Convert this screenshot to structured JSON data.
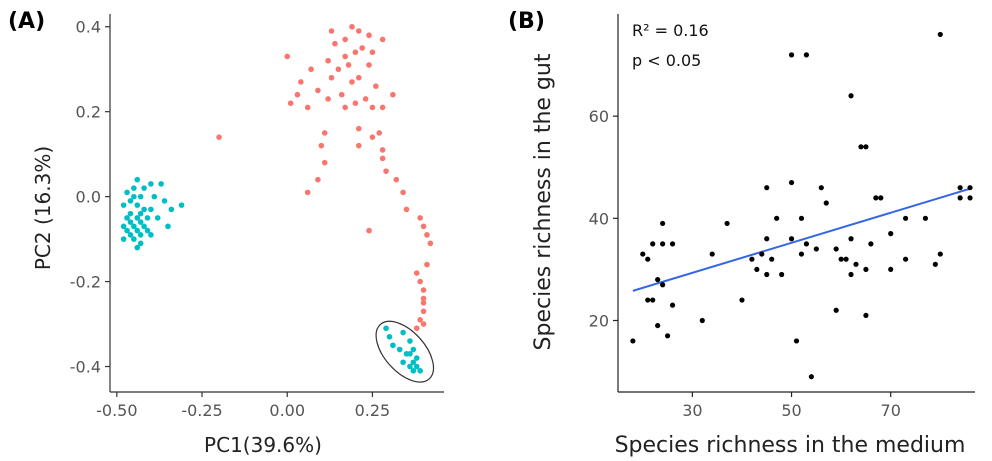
{
  "chart_data": [
    {
      "type": "scatter",
      "panel_label": "(A)",
      "xlabel": "PC1(39.6%)",
      "ylabel": "PC2 (16.3%)",
      "xlim": [
        -0.52,
        0.46
      ],
      "ylim": [
        -0.46,
        0.43
      ],
      "x_ticks": [
        -0.5,
        -0.25,
        0.0,
        0.25
      ],
      "x_tick_labels": [
        "-0.50",
        "-0.25",
        "0.00",
        "0.25"
      ],
      "y_ticks": [
        0.4,
        0.2,
        0.0,
        -0.2,
        -0.4
      ],
      "y_tick_labels": [
        "0.4",
        "0.2",
        "0.0",
        "-0.2",
        "-0.4"
      ],
      "grid": false,
      "ellipse": {
        "center": [
          0.345,
          -0.365
        ],
        "radius_x": 0.082,
        "radius_y": 0.082,
        "color": "#333333"
      },
      "series": [
        {
          "color": "#F8766D",
          "points": [
            [
              0.19,
              0.4
            ],
            [
              0.21,
              0.39
            ],
            [
              0.13,
              0.39
            ],
            [
              0.17,
              0.37
            ],
            [
              0.24,
              0.38
            ],
            [
              0.28,
              0.37
            ],
            [
              0.14,
              0.36
            ],
            [
              0.22,
              0.35
            ],
            [
              0.2,
              0.34
            ],
            [
              0.17,
              0.33
            ],
            [
              0.25,
              0.34
            ],
            [
              0.0,
              0.33
            ],
            [
              0.12,
              0.32
            ],
            [
              0.24,
              0.31
            ],
            [
              0.18,
              0.31
            ],
            [
              0.07,
              0.3
            ],
            [
              0.15,
              0.3
            ],
            [
              0.13,
              0.28
            ],
            [
              0.21,
              0.28
            ],
            [
              0.19,
              0.27
            ],
            [
              0.04,
              0.27
            ],
            [
              0.26,
              0.26
            ],
            [
              0.09,
              0.25
            ],
            [
              0.16,
              0.24
            ],
            [
              0.03,
              0.24
            ],
            [
              0.23,
              0.23
            ],
            [
              0.12,
              0.23
            ],
            [
              0.01,
              0.22
            ],
            [
              0.31,
              0.24
            ],
            [
              0.2,
              0.22
            ],
            [
              0.17,
              0.21
            ],
            [
              0.25,
              0.21
            ],
            [
              0.28,
              0.21
            ],
            [
              0.06,
              0.21
            ],
            [
              0.21,
              0.16
            ],
            [
              0.11,
              0.15
            ],
            [
              0.27,
              0.15
            ],
            [
              0.25,
              0.14
            ],
            [
              -0.2,
              0.14
            ],
            [
              0.21,
              0.12
            ],
            [
              0.1,
              0.12
            ],
            [
              0.28,
              0.11
            ],
            [
              0.28,
              0.09
            ],
            [
              0.11,
              0.08
            ],
            [
              0.29,
              0.06
            ],
            [
              0.09,
              0.04
            ],
            [
              0.06,
              0.01
            ],
            [
              0.32,
              0.04
            ],
            [
              0.34,
              0.01
            ],
            [
              0.35,
              -0.03
            ],
            [
              0.39,
              -0.05
            ],
            [
              0.4,
              -0.07
            ],
            [
              0.24,
              -0.08
            ],
            [
              0.41,
              -0.09
            ],
            [
              0.42,
              -0.11
            ],
            [
              0.41,
              -0.16
            ],
            [
              0.38,
              -0.18
            ],
            [
              0.39,
              -0.2
            ],
            [
              0.4,
              -0.22
            ],
            [
              0.4,
              -0.24
            ],
            [
              0.4,
              -0.25
            ],
            [
              0.4,
              -0.27
            ],
            [
              0.39,
              -0.29
            ],
            [
              0.4,
              -0.3
            ],
            [
              0.38,
              -0.31
            ]
          ]
        },
        {
          "color": "#00BFC4",
          "points": [
            [
              -0.44,
              0.04
            ],
            [
              -0.4,
              0.03
            ],
            [
              -0.45,
              0.02
            ],
            [
              -0.42,
              0.02
            ],
            [
              -0.37,
              0.03
            ],
            [
              -0.47,
              0.01
            ],
            [
              -0.45,
              0.0
            ],
            [
              -0.43,
              0.0
            ],
            [
              -0.39,
              0.0
            ],
            [
              -0.46,
              -0.01
            ],
            [
              -0.31,
              -0.02
            ],
            [
              -0.36,
              -0.01
            ],
            [
              -0.48,
              -0.02
            ],
            [
              -0.44,
              -0.02
            ],
            [
              -0.42,
              -0.03
            ],
            [
              -0.4,
              -0.03
            ],
            [
              -0.34,
              -0.03
            ],
            [
              -0.46,
              -0.04
            ],
            [
              -0.43,
              -0.04
            ],
            [
              -0.47,
              -0.05
            ],
            [
              -0.44,
              -0.05
            ],
            [
              -0.41,
              -0.05
            ],
            [
              -0.38,
              -0.05
            ],
            [
              -0.46,
              -0.06
            ],
            [
              -0.43,
              -0.06
            ],
            [
              -0.35,
              -0.07
            ],
            [
              -0.48,
              -0.07
            ],
            [
              -0.45,
              -0.07
            ],
            [
              -0.42,
              -0.07
            ],
            [
              -0.44,
              -0.08
            ],
            [
              -0.41,
              -0.08
            ],
            [
              -0.47,
              -0.08
            ],
            [
              -0.46,
              -0.09
            ],
            [
              -0.43,
              -0.09
            ],
            [
              -0.4,
              -0.09
            ],
            [
              -0.45,
              -0.1
            ],
            [
              -0.48,
              -0.1
            ],
            [
              -0.43,
              -0.11
            ],
            [
              -0.44,
              -0.12
            ],
            [
              0.29,
              -0.31
            ],
            [
              0.34,
              -0.32
            ],
            [
              0.3,
              -0.33
            ],
            [
              0.36,
              -0.34
            ],
            [
              0.31,
              -0.35
            ],
            [
              0.33,
              -0.36
            ],
            [
              0.37,
              -0.36
            ],
            [
              0.36,
              -0.37
            ],
            [
              0.35,
              -0.37
            ],
            [
              0.38,
              -0.38
            ],
            [
              0.34,
              -0.39
            ],
            [
              0.37,
              -0.39
            ],
            [
              0.36,
              -0.4
            ],
            [
              0.38,
              -0.4
            ],
            [
              0.39,
              -0.41
            ],
            [
              0.37,
              -0.41
            ]
          ]
        }
      ]
    },
    {
      "type": "scatter",
      "panel_label": "(B)",
      "xlabel": "Species richness in the medium",
      "ylabel": "Species richness in the gut",
      "annotations": [
        "R² = 0.16",
        "p < 0.05"
      ],
      "xlim": [
        15,
        87
      ],
      "ylim": [
        6,
        80
      ],
      "x_ticks": [
        30,
        50,
        70
      ],
      "y_ticks": [
        20,
        40,
        60
      ],
      "grid": false,
      "fit_line": {
        "color": "#3366E6",
        "x": [
          18,
          86
        ],
        "y": [
          25.8,
          45.8
        ]
      },
      "series": [
        {
          "color": "#000000",
          "points": [
            [
              80,
              76
            ],
            [
              50,
              72
            ],
            [
              53,
              72
            ],
            [
              62,
              64
            ],
            [
              64,
              54
            ],
            [
              65,
              54
            ],
            [
              84,
              46
            ],
            [
              50,
              47
            ],
            [
              45,
              46
            ],
            [
              56,
              46
            ],
            [
              86,
              46
            ],
            [
              84,
              44
            ],
            [
              68,
              44
            ],
            [
              86,
              44
            ],
            [
              67,
              44
            ],
            [
              57,
              43
            ],
            [
              24,
              39
            ],
            [
              37,
              39
            ],
            [
              52,
              40
            ],
            [
              47,
              40
            ],
            [
              73,
              40
            ],
            [
              70,
              37
            ],
            [
              77,
              40
            ],
            [
              45,
              36
            ],
            [
              50,
              36
            ],
            [
              62,
              36
            ],
            [
              22,
              35
            ],
            [
              24,
              35
            ],
            [
              26,
              35
            ],
            [
              53,
              35
            ],
            [
              66,
              35
            ],
            [
              20,
              33
            ],
            [
              80,
              33
            ],
            [
              44,
              33
            ],
            [
              52,
              33
            ],
            [
              55,
              34
            ],
            [
              59,
              34
            ],
            [
              34,
              33
            ],
            [
              21,
              32
            ],
            [
              42,
              32
            ],
            [
              73,
              32
            ],
            [
              46,
              32
            ],
            [
              60,
              32
            ],
            [
              61,
              32
            ],
            [
              63,
              31
            ],
            [
              43,
              30
            ],
            [
              65,
              30
            ],
            [
              70,
              30
            ],
            [
              79,
              31
            ],
            [
              62,
              29
            ],
            [
              45,
              29
            ],
            [
              48,
              29
            ],
            [
              23,
              28
            ],
            [
              24,
              27
            ],
            [
              21,
              24
            ],
            [
              22,
              24
            ],
            [
              40,
              24
            ],
            [
              26,
              23
            ],
            [
              59,
              22
            ],
            [
              65,
              21
            ],
            [
              32,
              20
            ],
            [
              23,
              19
            ],
            [
              25,
              17
            ],
            [
              18,
              16
            ],
            [
              51,
              16
            ],
            [
              54,
              9
            ]
          ]
        }
      ]
    }
  ]
}
